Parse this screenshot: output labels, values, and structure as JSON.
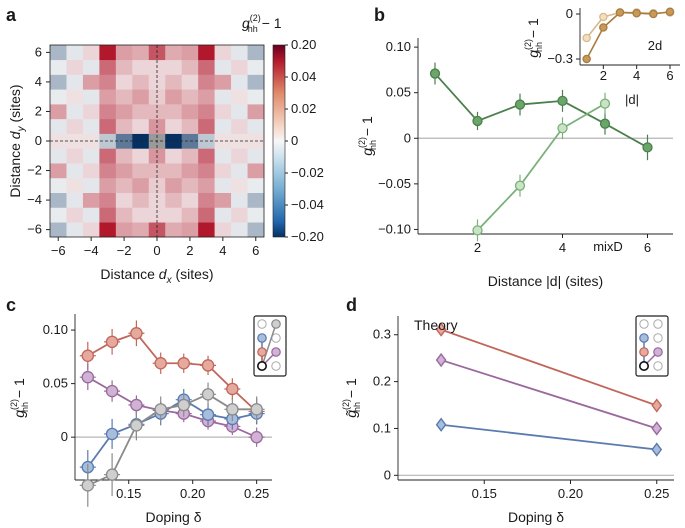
{
  "panel_labels": {
    "a": "a",
    "b": "b",
    "c": "c",
    "d": "d"
  },
  "chart_data": [
    {
      "id": "a",
      "type": "heatmap",
      "xlabel": "Distance",
      "xlabel_var": "d",
      "xlabel_sub": "x",
      "xlabel_unit": "(sites)",
      "ylabel": "Distance",
      "ylabel_var": "d",
      "ylabel_sub": "y",
      "ylabel_unit": "(sites)",
      "x_ticks": [
        "−6",
        "−4",
        "−2",
        "0",
        "2",
        "4",
        "6"
      ],
      "y_ticks": [
        "6",
        "4",
        "2",
        "0",
        "−2",
        "−4",
        "−6"
      ],
      "x_tick_values": [
        -6,
        -4,
        -2,
        0,
        2,
        4,
        6
      ],
      "y_tick_values": [
        6,
        4,
        2,
        0,
        -2,
        -4,
        -6
      ],
      "range": [
        -6.5,
        6.5
      ],
      "colorbar": {
        "title_prefix": "g",
        "title_sup": "(2)",
        "title_sub": "hh",
        "title_suffix": " − 1",
        "ticks": [
          "0.20",
          "0.04",
          "0.02",
          "0",
          "−0.02",
          "−0.04",
          "−0.20"
        ],
        "tick_values": [
          0.2,
          0.04,
          0.02,
          0,
          -0.02,
          -0.04,
          -0.2
        ]
      },
      "note": "symmetric checkerboard-like correlation map, reconstructed approximately"
    },
    {
      "id": "b",
      "type": "line",
      "xlabel": "Distance |d| (sites)",
      "ylabel_prefix": "g",
      "ylabel_sup": "(2)",
      "ylabel_sub": "hh",
      "ylabel_suffix": " − 1",
      "xlim": [
        0.6,
        6.6
      ],
      "ylim": [
        -0.105,
        0.11
      ],
      "x_ticks": [
        "2",
        "4",
        "6"
      ],
      "x_tick_values": [
        2,
        4,
        6
      ],
      "y_ticks": [
        "0.10",
        "0.05",
        "0",
        "−0.05",
        "−0.10"
      ],
      "y_tick_values": [
        0.1,
        0.05,
        0,
        -0.05,
        -0.1
      ],
      "annotation": "mixD",
      "series": [
        {
          "name": "mixD dark",
          "color": "#4b7f4b",
          "face": "#6aa66a",
          "x": [
            1,
            2,
            3,
            4,
            5,
            6
          ],
          "y": [
            0.071,
            0.019,
            0.037,
            0.041,
            0.016,
            -0.01
          ],
          "err": [
            0.012,
            0.01,
            0.012,
            0.012,
            0.012,
            0.014
          ]
        },
        {
          "name": "mixD light",
          "color": "#7ab07a",
          "face": "#c9e4c5",
          "x": [
            2,
            3,
            4,
            5
          ],
          "y": [
            -0.101,
            -0.052,
            0.011,
            0.038
          ],
          "err": [
            0.012,
            0.012,
            0.012,
            0.012
          ]
        }
      ]
    },
    {
      "id": "b_inset",
      "type": "line",
      "annotation": "2d",
      "xlabel": "|d|",
      "ylabel_prefix": "g",
      "ylabel_sup": "(2)",
      "ylabel_sub": "hh",
      "ylabel_suffix": " − 1",
      "xlim": [
        0.6,
        6.6
      ],
      "ylim": [
        -0.34,
        0.04
      ],
      "x_ticks": [
        "2",
        "4",
        "6"
      ],
      "x_tick_values": [
        2,
        4,
        6
      ],
      "y_ticks": [
        "0",
        "−0.3"
      ],
      "y_tick_values": [
        0,
        -0.3
      ],
      "series": [
        {
          "name": "2d light",
          "color": "#d9b98a",
          "face": "#f1dfc0",
          "x": [
            1,
            2,
            3,
            4,
            5,
            6
          ],
          "y": [
            -0.16,
            -0.02,
            0.01,
            0.01,
            0.005,
            0.01
          ]
        },
        {
          "name": "2d dark",
          "color": "#a87b40",
          "face": "#c89a5a",
          "x": [
            1,
            2,
            3,
            4,
            5,
            6
          ],
          "y": [
            -0.3,
            -0.09,
            0.01,
            0.005,
            0.0,
            0.015
          ]
        }
      ]
    },
    {
      "id": "c",
      "type": "line",
      "xlabel": "Doping δ",
      "ylabel_prefix": "g",
      "ylabel_sup": "(2)",
      "ylabel_sub": "hh",
      "ylabel_suffix": " − 1",
      "xlim": [
        0.108,
        0.262
      ],
      "ylim": [
        -0.04,
        0.115
      ],
      "x_ticks": [
        "0.15",
        "0.20",
        "0.25"
      ],
      "x_tick_values": [
        0.15,
        0.2,
        0.25
      ],
      "y_ticks": [
        "0.10",
        "0.05",
        "0"
      ],
      "y_tick_values": [
        0.1,
        0.05,
        0
      ],
      "series": [
        {
          "name": "red",
          "color": "#c0675a",
          "face": "#e6a99e",
          "x": [
            0.118,
            0.137,
            0.156,
            0.175,
            0.193,
            0.212,
            0.231,
            0.25
          ],
          "y": [
            0.076,
            0.089,
            0.097,
            0.069,
            0.069,
            0.067,
            0.045,
            0.024
          ],
          "err": [
            0.013,
            0.012,
            0.012,
            0.01,
            0.009,
            0.009,
            0.01,
            0.012
          ]
        },
        {
          "name": "purple",
          "color": "#9a6a9e",
          "face": "#cfb2d4",
          "x": [
            0.118,
            0.137,
            0.156,
            0.175,
            0.193,
            0.212,
            0.231,
            0.25
          ],
          "y": [
            0.056,
            0.043,
            0.03,
            0.025,
            0.022,
            0.015,
            0.01,
            0.0
          ],
          "err": [
            0.012,
            0.01,
            0.009,
            0.008,
            0.008,
            0.008,
            0.008,
            0.009
          ]
        },
        {
          "name": "blue",
          "color": "#5b7bb0",
          "face": "#a6bddc",
          "x": [
            0.118,
            0.137,
            0.156,
            0.175,
            0.193,
            0.212,
            0.231,
            0.25
          ],
          "y": [
            -0.028,
            0.003,
            0.012,
            0.022,
            0.035,
            0.021,
            0.017,
            0.022
          ],
          "err": [
            0.016,
            0.014,
            0.012,
            0.011,
            0.01,
            0.01,
            0.01,
            0.01
          ]
        },
        {
          "name": "gray",
          "color": "#8b8b8b",
          "face": "#cfcfcf",
          "x": [
            0.118,
            0.137,
            0.156,
            0.175,
            0.193,
            0.212,
            0.231,
            0.25
          ],
          "y": [
            -0.045,
            -0.035,
            0.011,
            0.026,
            0.03,
            0.04,
            0.026,
            0.026
          ],
          "err": [
            0.02,
            0.02,
            0.014,
            0.012,
            0.011,
            0.011,
            0.011,
            0.012
          ]
        }
      ]
    },
    {
      "id": "d",
      "type": "line",
      "title": "Theory",
      "xlabel": "Doping δ",
      "ylabel_prefix": "g̃",
      "ylabel_sup": "(2)",
      "ylabel_sub": "hh",
      "ylabel_suffix": " − 1",
      "xlim": [
        0.1,
        0.26
      ],
      "ylim": [
        -0.01,
        0.34
      ],
      "x_ticks": [
        "0.15",
        "0.20",
        "0.25"
      ],
      "x_tick_values": [
        0.15,
        0.2,
        0.25
      ],
      "y_ticks": [
        "0",
        "0.1",
        "0.2",
        "0.3"
      ],
      "y_tick_values": [
        0,
        0.1,
        0.2,
        0.3
      ],
      "series": [
        {
          "name": "red",
          "color": "#c0675a",
          "face": "#e6a99e",
          "x": [
            0.125,
            0.25
          ],
          "y": [
            0.311,
            0.149
          ]
        },
        {
          "name": "purple",
          "color": "#9a6a9e",
          "face": "#cfb2d4",
          "x": [
            0.125,
            0.25
          ],
          "y": [
            0.246,
            0.1
          ]
        },
        {
          "name": "blue",
          "color": "#5b7bb0",
          "face": "#a6bddc",
          "x": [
            0.125,
            0.25
          ],
          "y": [
            0.108,
            0.055
          ]
        }
      ]
    }
  ]
}
